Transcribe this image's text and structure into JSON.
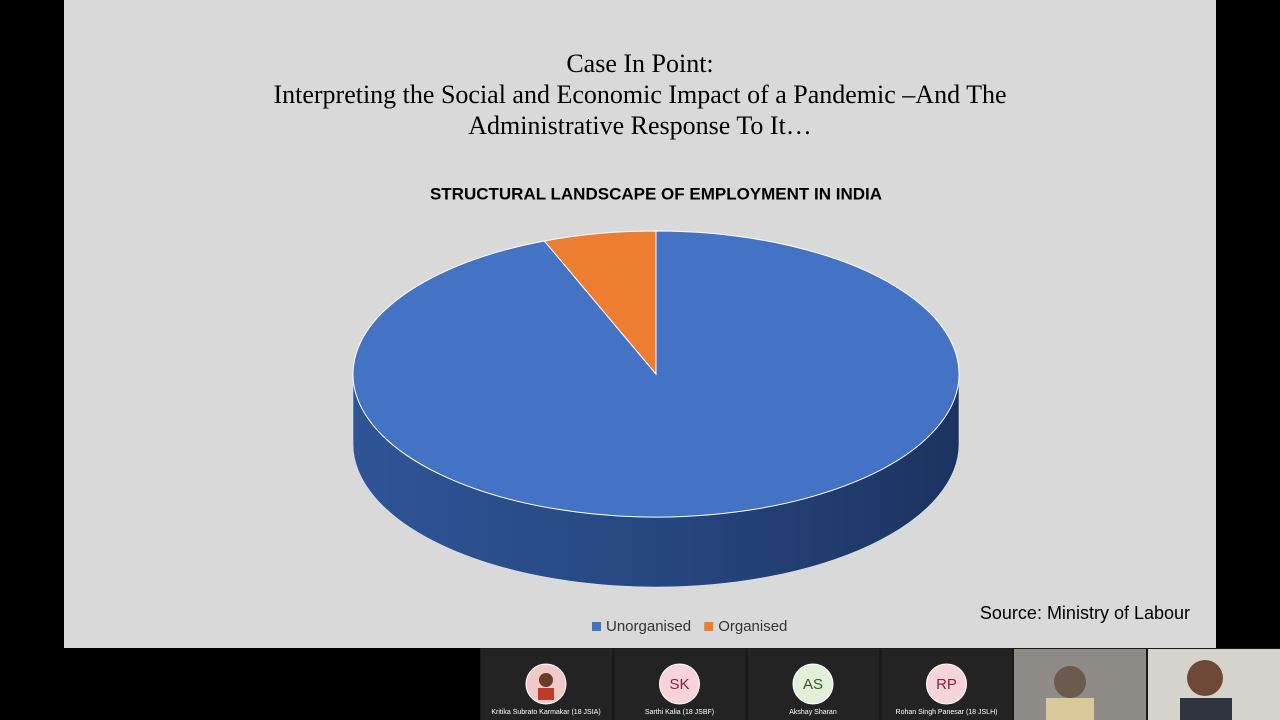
{
  "slide": {
    "title_lines": [
      "Case In Point:",
      "Interpreting the Social and Economic Impact of a Pandemic –And The",
      "Administrative Response To It…"
    ],
    "source": "Source: Ministry of Labour"
  },
  "chart_data": {
    "type": "pie",
    "title": "STRUCTURAL LANDSCAPE OF EMPLOYMENT IN INDIA",
    "categories": [
      "Unorganised",
      "Organised"
    ],
    "values": [
      94,
      6
    ],
    "colors": [
      "#4472c4",
      "#ed7d31"
    ],
    "legend": "bottom"
  },
  "participants": [
    {
      "name": "Kritika Subrato Karmakar (18 JSIA)"
    },
    {
      "initials": "SK",
      "name": "Sarthi Kalia (18 JSBF)"
    },
    {
      "initials": "AS",
      "name": "Akshay Sharan"
    },
    {
      "initials": "RP",
      "name": "Rohan Singh Panesar (18 JSLH)"
    }
  ]
}
